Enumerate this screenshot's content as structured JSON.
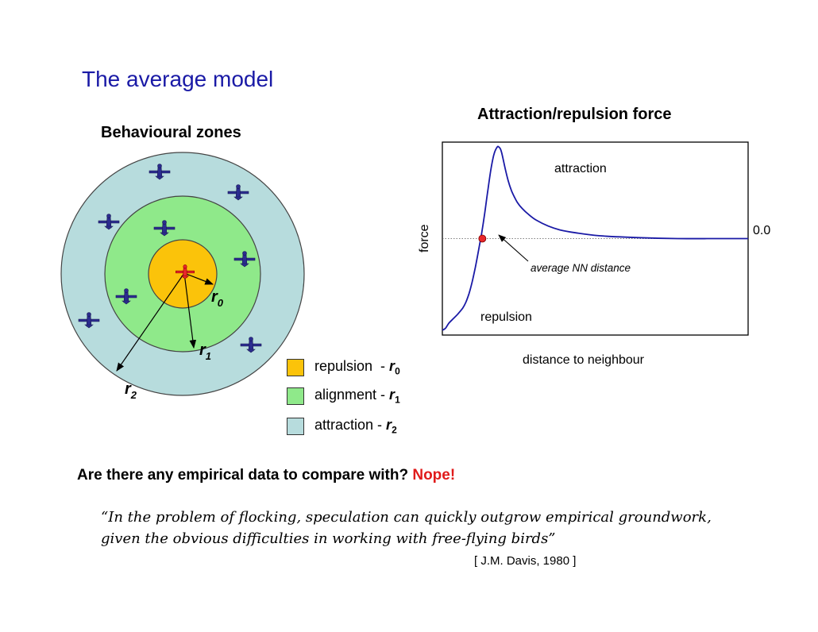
{
  "title": "The average model",
  "zones_heading": "Behavioural zones",
  "force_heading": "Attraction/repulsion force",
  "zones_diagram": {
    "radius_labels": [
      {
        "base": "r",
        "sub": "0"
      },
      {
        "base": "r",
        "sub": "1"
      },
      {
        "base": "r",
        "sub": "2"
      }
    ],
    "colors": {
      "repulsion": "#fbc30a",
      "alignment": "#8fe98a",
      "attraction": "#b7dcdd",
      "focal_bird": "#e8262a",
      "bird": "#2b2c8f"
    },
    "icon_names": [
      "focal-bird-icon",
      "bird-icon"
    ]
  },
  "legend": [
    {
      "label": "repulsion  - ",
      "r": "r",
      "sub": "0",
      "color": "#fbc30a"
    },
    {
      "label": "alignment - ",
      "r": "r",
      "sub": "1",
      "color": "#8fe98a"
    },
    {
      "label": "attraction - ",
      "r": "r",
      "sub": "2",
      "color": "#b7dcdd"
    }
  ],
  "chart_data": {
    "type": "line",
    "title": "Attraction/repulsion force",
    "xlabel": "distance to neighbour",
    "ylabel": "force",
    "zero_label": "0.0",
    "annotations": [
      "attraction",
      "repulsion",
      "average NN distance"
    ],
    "series": [
      {
        "color": "#1a1aa6",
        "x": [
          0,
          4,
          8,
          14,
          20,
          26,
          30,
          34,
          38,
          42,
          46,
          50,
          54,
          58,
          62,
          66,
          70,
          72,
          74,
          76,
          80,
          84,
          88,
          92,
          96,
          102,
          110,
          120,
          135,
          150,
          170,
          200,
          250,
          300,
          350,
          390
        ],
        "y": [
          -0.95,
          -0.93,
          -0.88,
          -0.83,
          -0.78,
          -0.72,
          -0.66,
          -0.57,
          -0.45,
          -0.3,
          -0.13,
          0.05,
          0.26,
          0.5,
          0.72,
          0.88,
          0.95,
          0.95,
          0.93,
          0.88,
          0.73,
          0.6,
          0.5,
          0.43,
          0.37,
          0.31,
          0.25,
          0.19,
          0.13,
          0.09,
          0.06,
          0.03,
          0.01,
          0.0,
          0.0,
          0.0
        ]
      }
    ],
    "marker": {
      "x": 51,
      "y": 0.0,
      "color": "#e8262a",
      "label": "average NN distance"
    },
    "xlim": [
      0,
      390
    ],
    "ylim": [
      -1.0,
      1.0
    ],
    "zero_line": true,
    "grid": false
  },
  "question": {
    "text": "Are there any empirical data to compare with? ",
    "answer": "Nope!"
  },
  "quote": "“In the problem of flocking, speculation can quickly outgrow empirical groundwork, given the obvious difficulties in working with free-flying birds”",
  "citation": "[ J.M. Davis, 1980 ]"
}
